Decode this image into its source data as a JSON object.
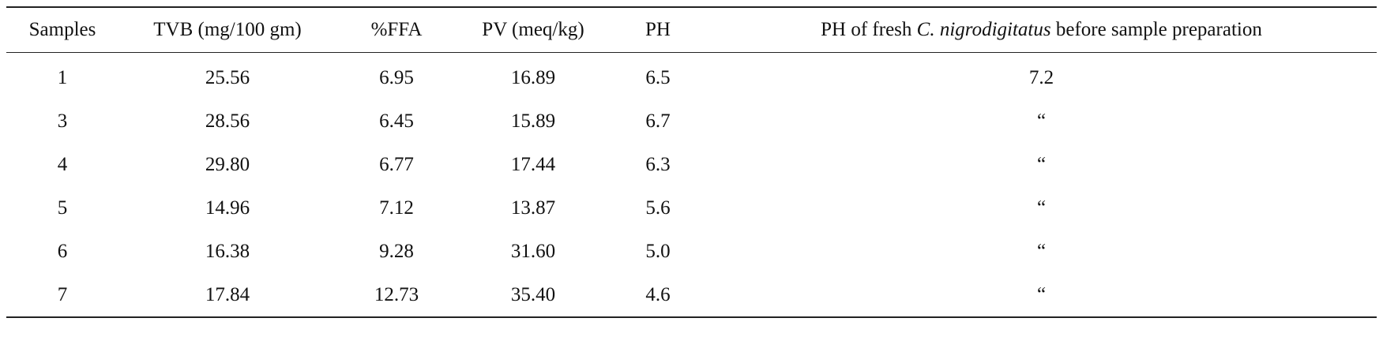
{
  "table": {
    "headers": {
      "samples": "Samples",
      "tvb": "TVB (mg/100 gm)",
      "ffa": "%FFA",
      "pv": "PV (meq/kg)",
      "ph": "PH",
      "fresh_prefix": "PH of fresh ",
      "fresh_species": "C. nigrodigitatus",
      "fresh_suffix": " before sample preparation"
    },
    "rows": [
      {
        "sample": "1",
        "tvb": "25.56",
        "ffa": "6.95",
        "pv": "16.89",
        "ph": "6.5",
        "fresh_ph": "7.2"
      },
      {
        "sample": "3",
        "tvb": "28.56",
        "ffa": "6.45",
        "pv": "15.89",
        "ph": "6.7",
        "fresh_ph": "“"
      },
      {
        "sample": "4",
        "tvb": "29.80",
        "ffa": "6.77",
        "pv": "17.44",
        "ph": "6.3",
        "fresh_ph": "“"
      },
      {
        "sample": "5",
        "tvb": "14.96",
        "ffa": "7.12",
        "pv": "13.87",
        "ph": "5.6",
        "fresh_ph": "“"
      },
      {
        "sample": "6",
        "tvb": "16.38",
        "ffa": "9.28",
        "pv": "31.60",
        "ph": "5.0",
        "fresh_ph": "“"
      },
      {
        "sample": "7",
        "tvb": "17.84",
        "ffa": "12.73",
        "pv": "35.40",
        "ph": "4.6",
        "fresh_ph": "“"
      }
    ]
  }
}
